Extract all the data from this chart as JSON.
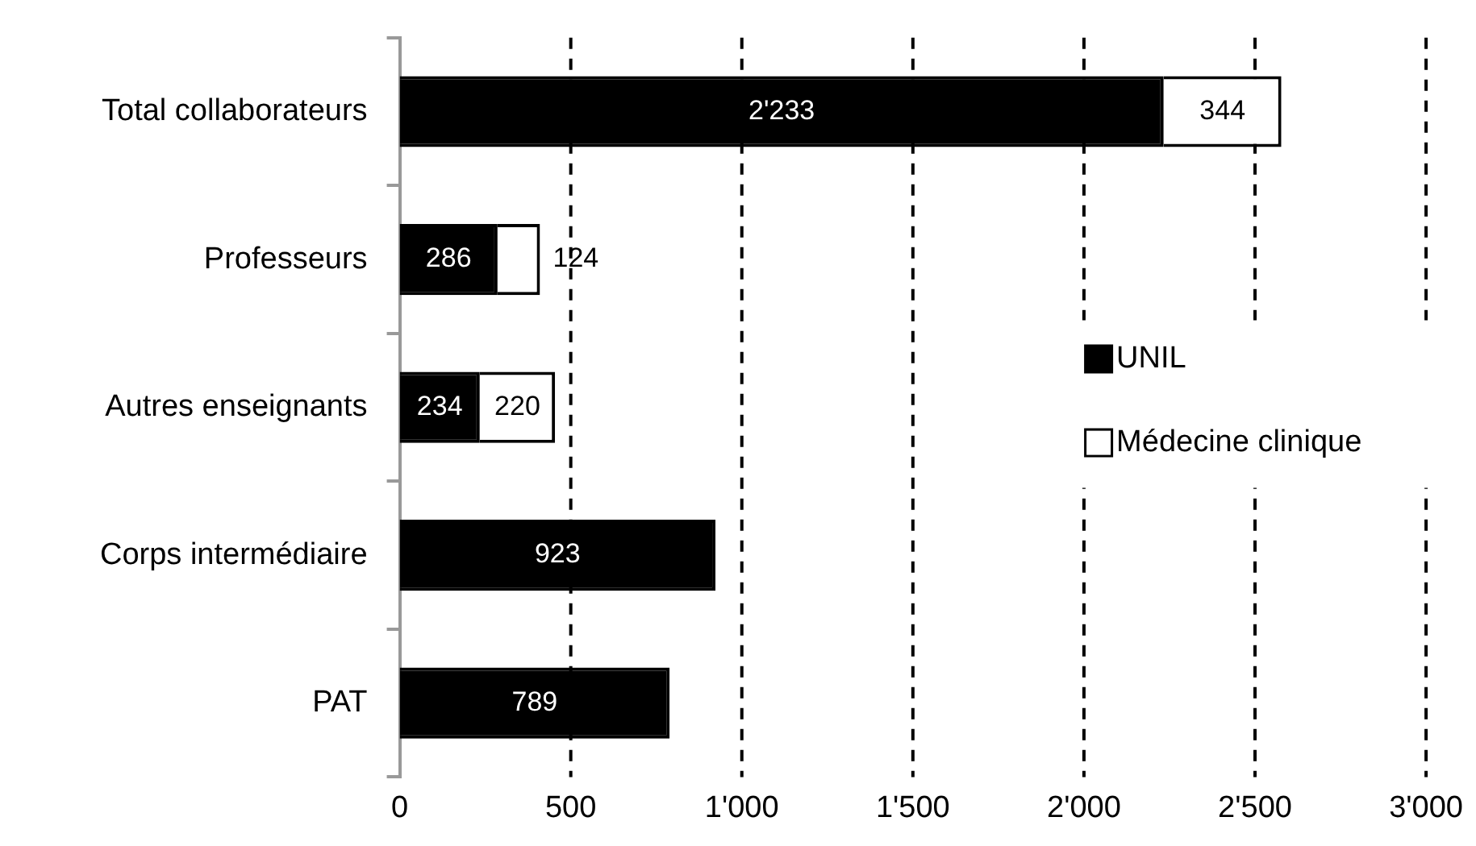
{
  "chart_data": {
    "type": "bar",
    "orientation": "horizontal",
    "stacked": true,
    "categories": [
      "Total collaborateurs",
      "Professeurs",
      "Autres enseignants",
      "Corps intermédiaire",
      "PAT"
    ],
    "series": [
      {
        "name": "UNIL",
        "color": "#000000",
        "values": [
          2233,
          286,
          234,
          923,
          789
        ],
        "value_labels": [
          "2'233",
          "286",
          "234",
          "923",
          "789"
        ]
      },
      {
        "name": "Médecine clinique",
        "color": "#ffffff",
        "values": [
          344,
          124,
          220,
          null,
          null
        ],
        "value_labels": [
          "344",
          "124",
          "220",
          null,
          null
        ]
      }
    ],
    "xlim": [
      0,
      3000
    ],
    "xticks": [
      0,
      500,
      {
        "value": 1000,
        "label": "1'000"
      },
      {
        "value": 1500,
        "label": "1'500"
      },
      {
        "value": 2000,
        "label": "2'000"
      },
      {
        "value": 2500,
        "label": "2'500"
      },
      {
        "value": 3000,
        "label": "3'000"
      }
    ],
    "grid": "x",
    "legend": "right"
  }
}
